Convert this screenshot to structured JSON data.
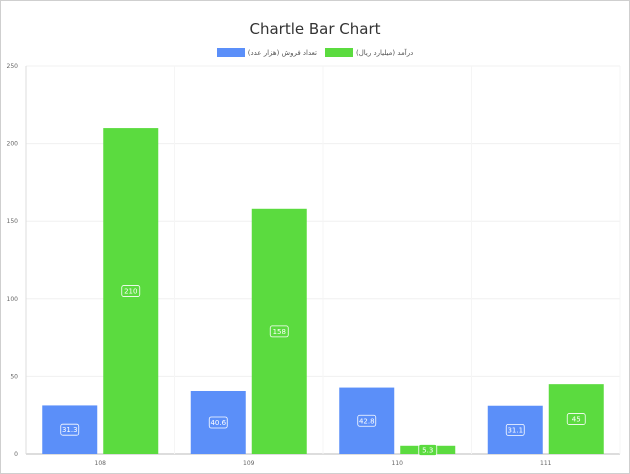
{
  "chart_data": {
    "type": "bar",
    "title": "Chartle Bar Chart",
    "categories": [
      "108",
      "109",
      "110",
      "111"
    ],
    "series": [
      {
        "name": "تعداد فروش (هزار عدد)",
        "color": "#5b8ff9",
        "values": [
          31.3,
          40.6,
          42.8,
          31.1
        ]
      },
      {
        "name": "درآمد (میلیارد ریال)",
        "color": "#5bdb3f",
        "values": [
          210,
          158,
          5.3,
          45
        ]
      }
    ],
    "value_labels": [
      [
        "31.3",
        "40.6",
        "42.8",
        "31.1"
      ],
      [
        "210",
        "158",
        "5.3",
        "45"
      ]
    ],
    "ylim": [
      0,
      250
    ],
    "yticks": [
      "0",
      "50",
      "100",
      "150",
      "200",
      "250"
    ],
    "xlabel": "",
    "ylabel": "",
    "grid": true,
    "legend_position": "top-center"
  }
}
